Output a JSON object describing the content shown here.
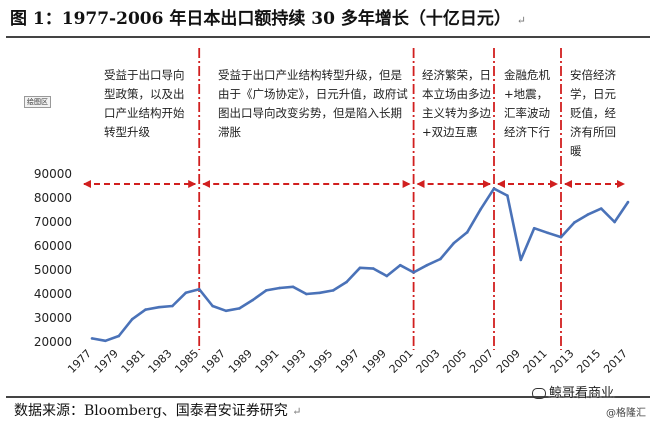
{
  "header": {
    "title": "图 1：1977-2006 年日本出口额持续 30 多年增长（十亿日元）",
    "return_mark": "↵"
  },
  "footer": {
    "source": "数据来源：Bloomberg、国泰君安证券研究",
    "return_mark": "↵",
    "watermark_main": "鲸哥看商业",
    "watermark_sub": "@格隆汇"
  },
  "chip_label": "绘图区",
  "annotations": [
    {
      "text": "受益于出口导向型政策，以及出口产业结构开始转型升级"
    },
    {
      "text": "受益于出口产业结构转型升级，但是由于《广场协定》，日元升值，政府试图出口导向改变劣势，但是陷入长期滞胀"
    },
    {
      "text": "经济繁荣，日本立场由多边主义转为多边+双边互惠"
    },
    {
      "text": "金融危机+地震，汇率波动经济下行"
    },
    {
      "text": "安倍经济学，日元贬值，经济有所回暖"
    }
  ],
  "chart_data": {
    "type": "line",
    "title": "",
    "xlabel": "",
    "ylabel": "",
    "ylim": [
      20000,
      90000
    ],
    "yticks": [
      20000,
      30000,
      40000,
      50000,
      60000,
      70000,
      80000,
      90000
    ],
    "xlim": [
      1977,
      2017
    ],
    "xtick_labels": [
      "1977",
      "1979",
      "1981",
      "1983",
      "1985",
      "1987",
      "1989",
      "1991",
      "1993",
      "1995",
      "1997",
      "1999",
      "2001",
      "2003",
      "2005",
      "2007",
      "2009",
      "2011",
      "2013",
      "2015",
      "2017"
    ],
    "grid": false,
    "line_color": "#4a72b8",
    "marker_color": "#d11f1f",
    "period_boundaries": [
      1985,
      2001,
      2007,
      2012
    ],
    "series": [
      {
        "x": [
          1977,
          1978,
          1979,
          1980,
          1981,
          1982,
          1983,
          1984,
          1985,
          1986,
          1987,
          1988,
          1989,
          1990,
          1991,
          1992,
          1993,
          1994,
          1995,
          1996,
          1997,
          1998,
          1999,
          2000,
          2001,
          2002,
          2003,
          2004,
          2005,
          2006,
          2007,
          2008,
          2009,
          2010,
          2011,
          2012,
          2013,
          2014,
          2015,
          2016,
          2017
        ],
        "values": [
          21500,
          20500,
          22500,
          29500,
          33500,
          34500,
          35000,
          40500,
          42000,
          35000,
          33000,
          34000,
          37500,
          41500,
          42500,
          43000,
          40000,
          40500,
          41500,
          45000,
          50900,
          50600,
          47500,
          52000,
          49000,
          52000,
          54600,
          61200,
          65700,
          75300,
          83900,
          81000,
          54200,
          67400,
          65500,
          63700,
          69800,
          73100,
          75600,
          70000,
          78300
        ]
      }
    ]
  }
}
